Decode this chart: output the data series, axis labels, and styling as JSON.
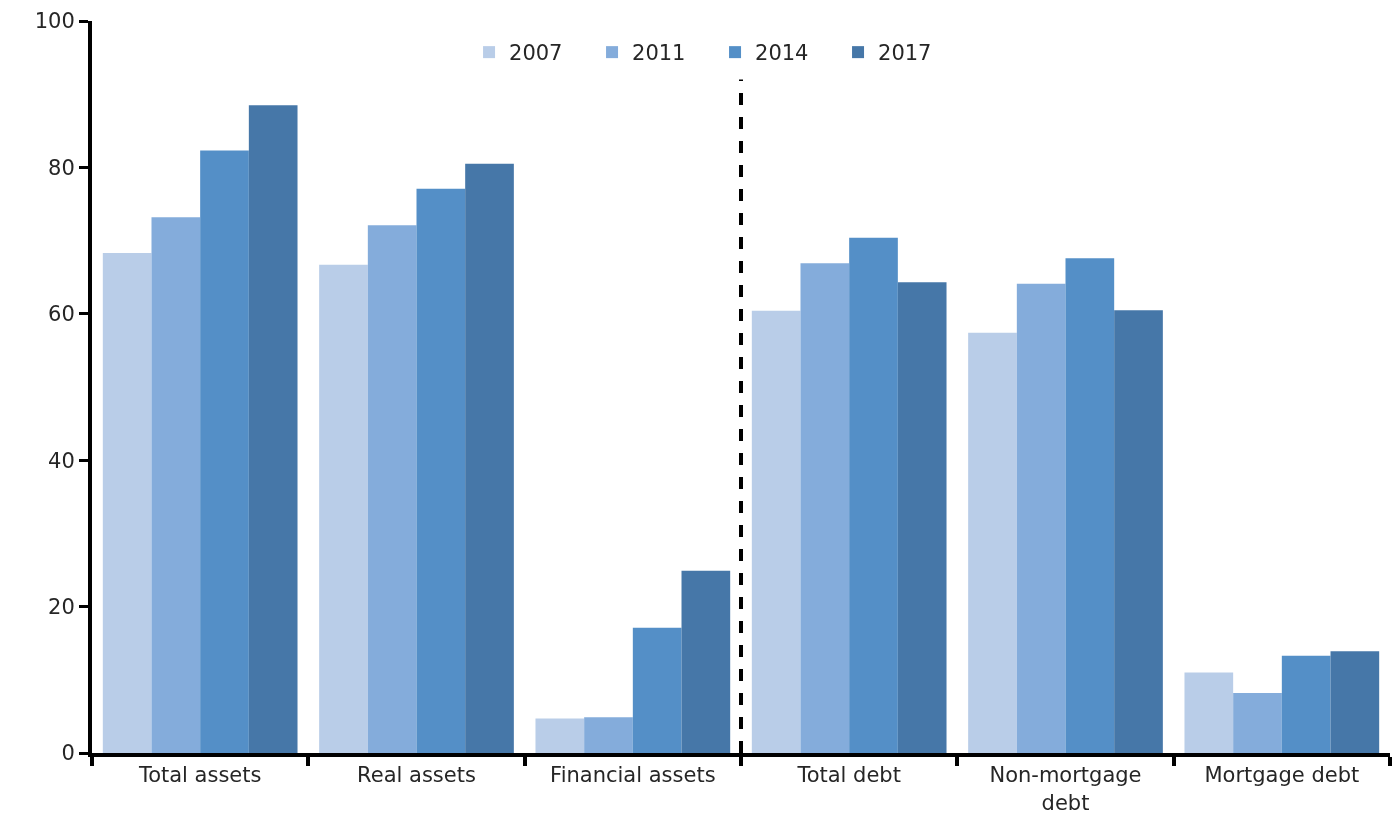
{
  "chart_data": {
    "type": "bar",
    "categories": [
      "Total assets",
      "Real assets",
      "Financial assets",
      "Total debt",
      "Non-mortgage debt",
      "Mortgage debt"
    ],
    "series": [
      {
        "name": "2007",
        "color": "#b9cde8",
        "values": [
          68.3,
          66.7,
          4.7,
          60.4,
          57.4,
          11.0
        ]
      },
      {
        "name": "2011",
        "color": "#84acdb",
        "values": [
          73.2,
          72.1,
          4.9,
          66.9,
          64.1,
          8.2
        ]
      },
      {
        "name": "2014",
        "color": "#548fc7",
        "values": [
          82.3,
          77.1,
          17.1,
          70.4,
          67.6,
          13.3
        ]
      },
      {
        "name": "2017",
        "color": "#4677a8",
        "values": [
          88.5,
          80.5,
          24.9,
          64.3,
          60.5,
          13.9
        ]
      }
    ],
    "ylim": [
      0,
      100
    ],
    "yticks": [
      0,
      20,
      40,
      60,
      80,
      100
    ],
    "grid": false,
    "legend": "top"
  }
}
